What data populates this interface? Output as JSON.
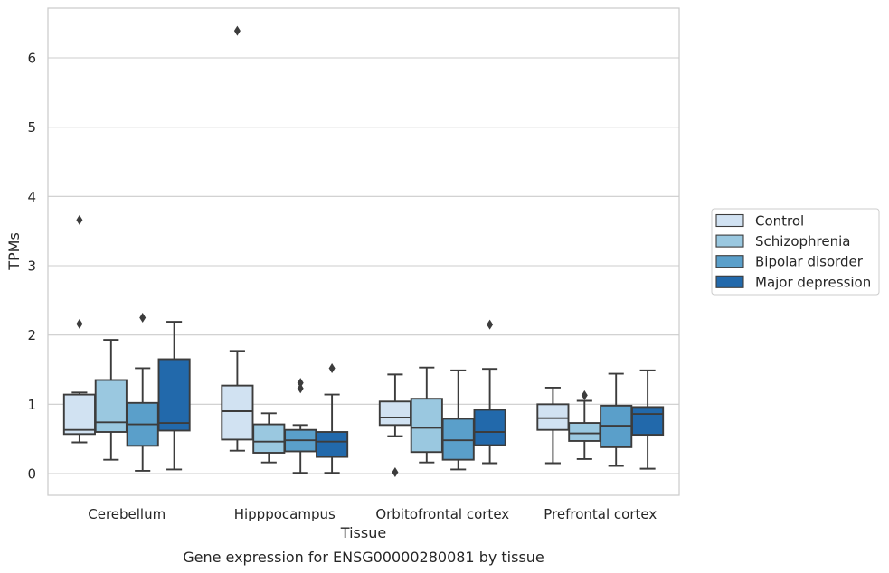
{
  "chart_data": {
    "type": "box",
    "title": "Gene expression for ENSG00000280081 by tissue",
    "xlabel": "Tissue",
    "ylabel": "TPMs",
    "ylim": [
      -0.3,
      6.75
    ],
    "yticks": [
      0,
      1,
      2,
      3,
      4,
      5,
      6
    ],
    "grid": "horizontal",
    "legend_position": "right",
    "categories": [
      "Cerebellum",
      "Hipppocampus",
      "Orbitofrontal cortex",
      "Prefrontal cortex"
    ],
    "series": [
      {
        "name": "Control",
        "color": "#d1e2f2",
        "boxes": [
          {
            "whislo": 0.45,
            "q1": 0.57,
            "med": 0.63,
            "q3": 1.14,
            "whishi": 1.17,
            "fliers": [
              2.16,
              3.66
            ]
          },
          {
            "whislo": 0.33,
            "q1": 0.49,
            "med": 0.9,
            "q3": 1.27,
            "whishi": 1.77,
            "fliers": [
              6.39
            ]
          },
          {
            "whislo": 0.54,
            "q1": 0.7,
            "med": 0.81,
            "q3": 1.04,
            "whishi": 1.43,
            "fliers": [
              0.02
            ]
          },
          {
            "whislo": 0.15,
            "q1": 0.63,
            "med": 0.8,
            "q3": 1.0,
            "whishi": 1.24,
            "fliers": []
          }
        ]
      },
      {
        "name": "Schizophrenia",
        "color": "#9ac8e0",
        "boxes": [
          {
            "whislo": 0.2,
            "q1": 0.6,
            "med": 0.74,
            "q3": 1.35,
            "whishi": 1.93,
            "fliers": []
          },
          {
            "whislo": 0.16,
            "q1": 0.3,
            "med": 0.46,
            "q3": 0.71,
            "whishi": 0.87,
            "fliers": []
          },
          {
            "whislo": 0.16,
            "q1": 0.31,
            "med": 0.66,
            "q3": 1.08,
            "whishi": 1.53,
            "fliers": []
          },
          {
            "whislo": 0.21,
            "q1": 0.47,
            "med": 0.58,
            "q3": 0.73,
            "whishi": 1.05,
            "fliers": [
              1.13
            ]
          }
        ]
      },
      {
        "name": "Bipolar disorder",
        "color": "#5a9fca",
        "boxes": [
          {
            "whislo": 0.04,
            "q1": 0.4,
            "med": 0.71,
            "q3": 1.02,
            "whishi": 1.52,
            "fliers": [
              2.25
            ]
          },
          {
            "whislo": 0.01,
            "q1": 0.32,
            "med": 0.48,
            "q3": 0.63,
            "whishi": 0.7,
            "fliers": [
              1.23,
              1.31
            ]
          },
          {
            "whislo": 0.06,
            "q1": 0.2,
            "med": 0.48,
            "q3": 0.79,
            "whishi": 1.49,
            "fliers": []
          },
          {
            "whislo": 0.11,
            "q1": 0.38,
            "med": 0.69,
            "q3": 0.98,
            "whishi": 1.44,
            "fliers": []
          }
        ]
      },
      {
        "name": "Major depression",
        "color": "#2269ab",
        "boxes": [
          {
            "whislo": 0.06,
            "q1": 0.62,
            "med": 0.73,
            "q3": 1.65,
            "whishi": 2.19,
            "fliers": []
          },
          {
            "whislo": 0.01,
            "q1": 0.24,
            "med": 0.46,
            "q3": 0.6,
            "whishi": 1.14,
            "fliers": [
              1.52
            ]
          },
          {
            "whislo": 0.15,
            "q1": 0.41,
            "med": 0.6,
            "q3": 0.92,
            "whishi": 1.51,
            "fliers": [
              2.15
            ]
          },
          {
            "whislo": 0.07,
            "q1": 0.56,
            "med": 0.86,
            "q3": 0.96,
            "whishi": 1.49,
            "fliers": []
          }
        ]
      }
    ]
  }
}
